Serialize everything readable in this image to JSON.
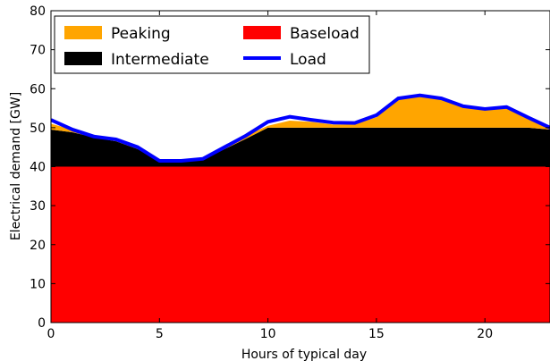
{
  "chart_data": {
    "type": "area",
    "title": "",
    "xlabel": "Hours of typical day",
    "ylabel": "Electrical demand [GW]",
    "xlim": [
      0,
      23
    ],
    "ylim": [
      0,
      80
    ],
    "xticks": [
      0,
      5,
      10,
      15,
      20
    ],
    "yticks": [
      0,
      10,
      20,
      30,
      40,
      50,
      60,
      70,
      80
    ],
    "grid": false,
    "legend_position": "top-left",
    "x": [
      0,
      1,
      2,
      3,
      4,
      5,
      6,
      7,
      8,
      9,
      10,
      11,
      12,
      13,
      14,
      15,
      16,
      17,
      18,
      19,
      20,
      21,
      22,
      23
    ],
    "series": [
      {
        "name": "Baseload",
        "kind": "area",
        "color": "#ff0000",
        "values": [
          40,
          40,
          40,
          40,
          40,
          40,
          40,
          40,
          40,
          40,
          40,
          40,
          40,
          40,
          40,
          40,
          40,
          40,
          40,
          40,
          40,
          40,
          40,
          40
        ]
      },
      {
        "name": "Intermediate",
        "kind": "area",
        "color": "#000000",
        "values": [
          9.5,
          8.8,
          7.5,
          6.5,
          4.5,
          1.3,
          1.3,
          1.8,
          4.5,
          7.2,
          10,
          10,
          10,
          10,
          10,
          10,
          10,
          10,
          10,
          10,
          10,
          10,
          10,
          9.5
        ]
      },
      {
        "name": "Peaking",
        "kind": "area",
        "color": "#ffa500",
        "values": [
          1.5,
          0.7,
          0.2,
          0.5,
          0.5,
          0.2,
          0.2,
          0.2,
          0.5,
          0.8,
          0.5,
          1.8,
          1.5,
          0.8,
          0.8,
          2.7,
          7.5,
          8.3,
          7.5,
          5.5,
          4.8,
          5.3,
          2.6,
          0.5
        ]
      },
      {
        "name": "Load",
        "kind": "line",
        "color": "#0000ff",
        "values": [
          52,
          49.5,
          47.7,
          47,
          45,
          41.5,
          41.5,
          42,
          45,
          48,
          51.5,
          52.8,
          52,
          51.3,
          51.2,
          53.2,
          57.5,
          58.3,
          57.5,
          55.5,
          54.8,
          55.3,
          52.6,
          50
        ]
      }
    ],
    "legend_order": [
      "Peaking",
      "Baseload",
      "Intermediate",
      "Load"
    ]
  }
}
